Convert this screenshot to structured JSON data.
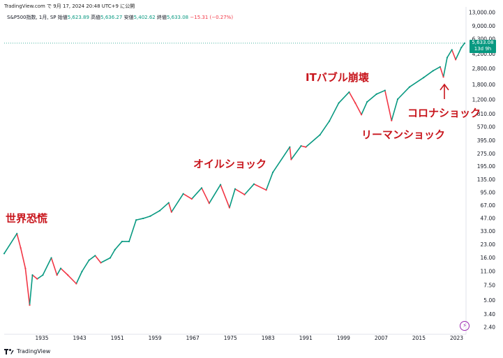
{
  "header": {
    "publisher": "TradingView.com で 9月 17, 2024 20:48 UTC+9 に公開"
  },
  "legend": {
    "symbol": "S&P500指数, 1月, SP",
    "open_label": "始値",
    "open": "5,623.89",
    "high_label": "高値",
    "high": "5,636.27",
    "low_label": "安値",
    "low": "5,402.62",
    "close_label": "終値",
    "close": "5,633.08",
    "change": "−15.31 (−0.27%)"
  },
  "price_tag": {
    "price": "5,633.08",
    "countdown": "13d 9h"
  },
  "footer": {
    "brand": "TradingView"
  },
  "colors": {
    "up": "#089981",
    "down": "#f23645",
    "annotation": "#c8161d",
    "last_price": "#089981"
  },
  "icons": {
    "footer_logo": "tradingview-logo-icon",
    "alert": "lightning-icon"
  },
  "chart_data": {
    "type": "line",
    "scale": "log",
    "title": "",
    "xlabel": "",
    "ylabel": "",
    "x_ticks": [
      "1935",
      "1943",
      "1951",
      "1959",
      "1967",
      "1975",
      "1983",
      "1991",
      "1999",
      "2007",
      "2015",
      "2023"
    ],
    "y_ticks": [
      "13,000.00",
      "9,000.00",
      "6,300.00",
      "4,200.00",
      "2,800.00",
      "1,800.00",
      "1,200.00",
      "810.00",
      "570.00",
      "395.00",
      "275.00",
      "195.00",
      "135.00",
      "95.00",
      "67.00",
      "47.00",
      "33.00",
      "23.00",
      "16.00",
      "11.00",
      "7.50",
      "5.00",
      "3.40",
      "2.40"
    ],
    "ylim": [
      2.4,
      13000
    ],
    "xlim": [
      1927,
      2025
    ],
    "series": [
      {
        "x": [
          1927.0,
          1929.7,
          1930.5,
          1931.5,
          1932.4,
          1933.0,
          1934.0,
          1935.2,
          1937.0,
          1938.2,
          1939.0,
          1940.5,
          1942.3,
          1943.5,
          1945.0,
          1946.3,
          1947.5,
          1949.5,
          1950.5,
          1952.0,
          1953.5,
          1955.0,
          1956.5,
          1958.0,
          1960.0,
          1961.9,
          1962.5,
          1965.0,
          1966.8,
          1968.9,
          1970.5,
          1972.9,
          1974.8,
          1976.0,
          1978.0,
          1980.0,
          1982.6,
          1984.0,
          1987.6,
          1987.9,
          1990.0,
          1991.0,
          1994.0,
          1996.0,
          1998.0,
          2000.2,
          2001.5,
          2002.8,
          2004.0,
          2006.0,
          2007.8,
          2009.2,
          2010.5,
          2013.0,
          2016.0,
          2018.0,
          2019.5,
          2020.2,
          2021.0,
          2022.0,
          2022.8,
          2024.0,
          2024.7
        ],
        "y": [
          18,
          31,
          21,
          12,
          4.4,
          10,
          9,
          10,
          16,
          10,
          12,
          10,
          7.9,
          11,
          15,
          17,
          14,
          16,
          20,
          25,
          25,
          45,
          47,
          50,
          58,
          72,
          56,
          92,
          80,
          108,
          71,
          118,
          63,
          105,
          90,
          120,
          102,
          165,
          330,
          235,
          340,
          330,
          460,
          670,
          1100,
          1480,
          1100,
          800,
          1130,
          1400,
          1550,
          680,
          1220,
          1700,
          2200,
          2650,
          2950,
          2240,
          3800,
          4700,
          3600,
          5000,
          5633
        ]
      }
    ],
    "annotations": [
      {
        "text": "世界恐慌"
      },
      {
        "text": "オイルショック"
      },
      {
        "text": "ITバブル崩壊"
      },
      {
        "text": "リーマンショック"
      },
      {
        "text": "コロナショック"
      }
    ],
    "grid": false,
    "legend": "top-left"
  }
}
